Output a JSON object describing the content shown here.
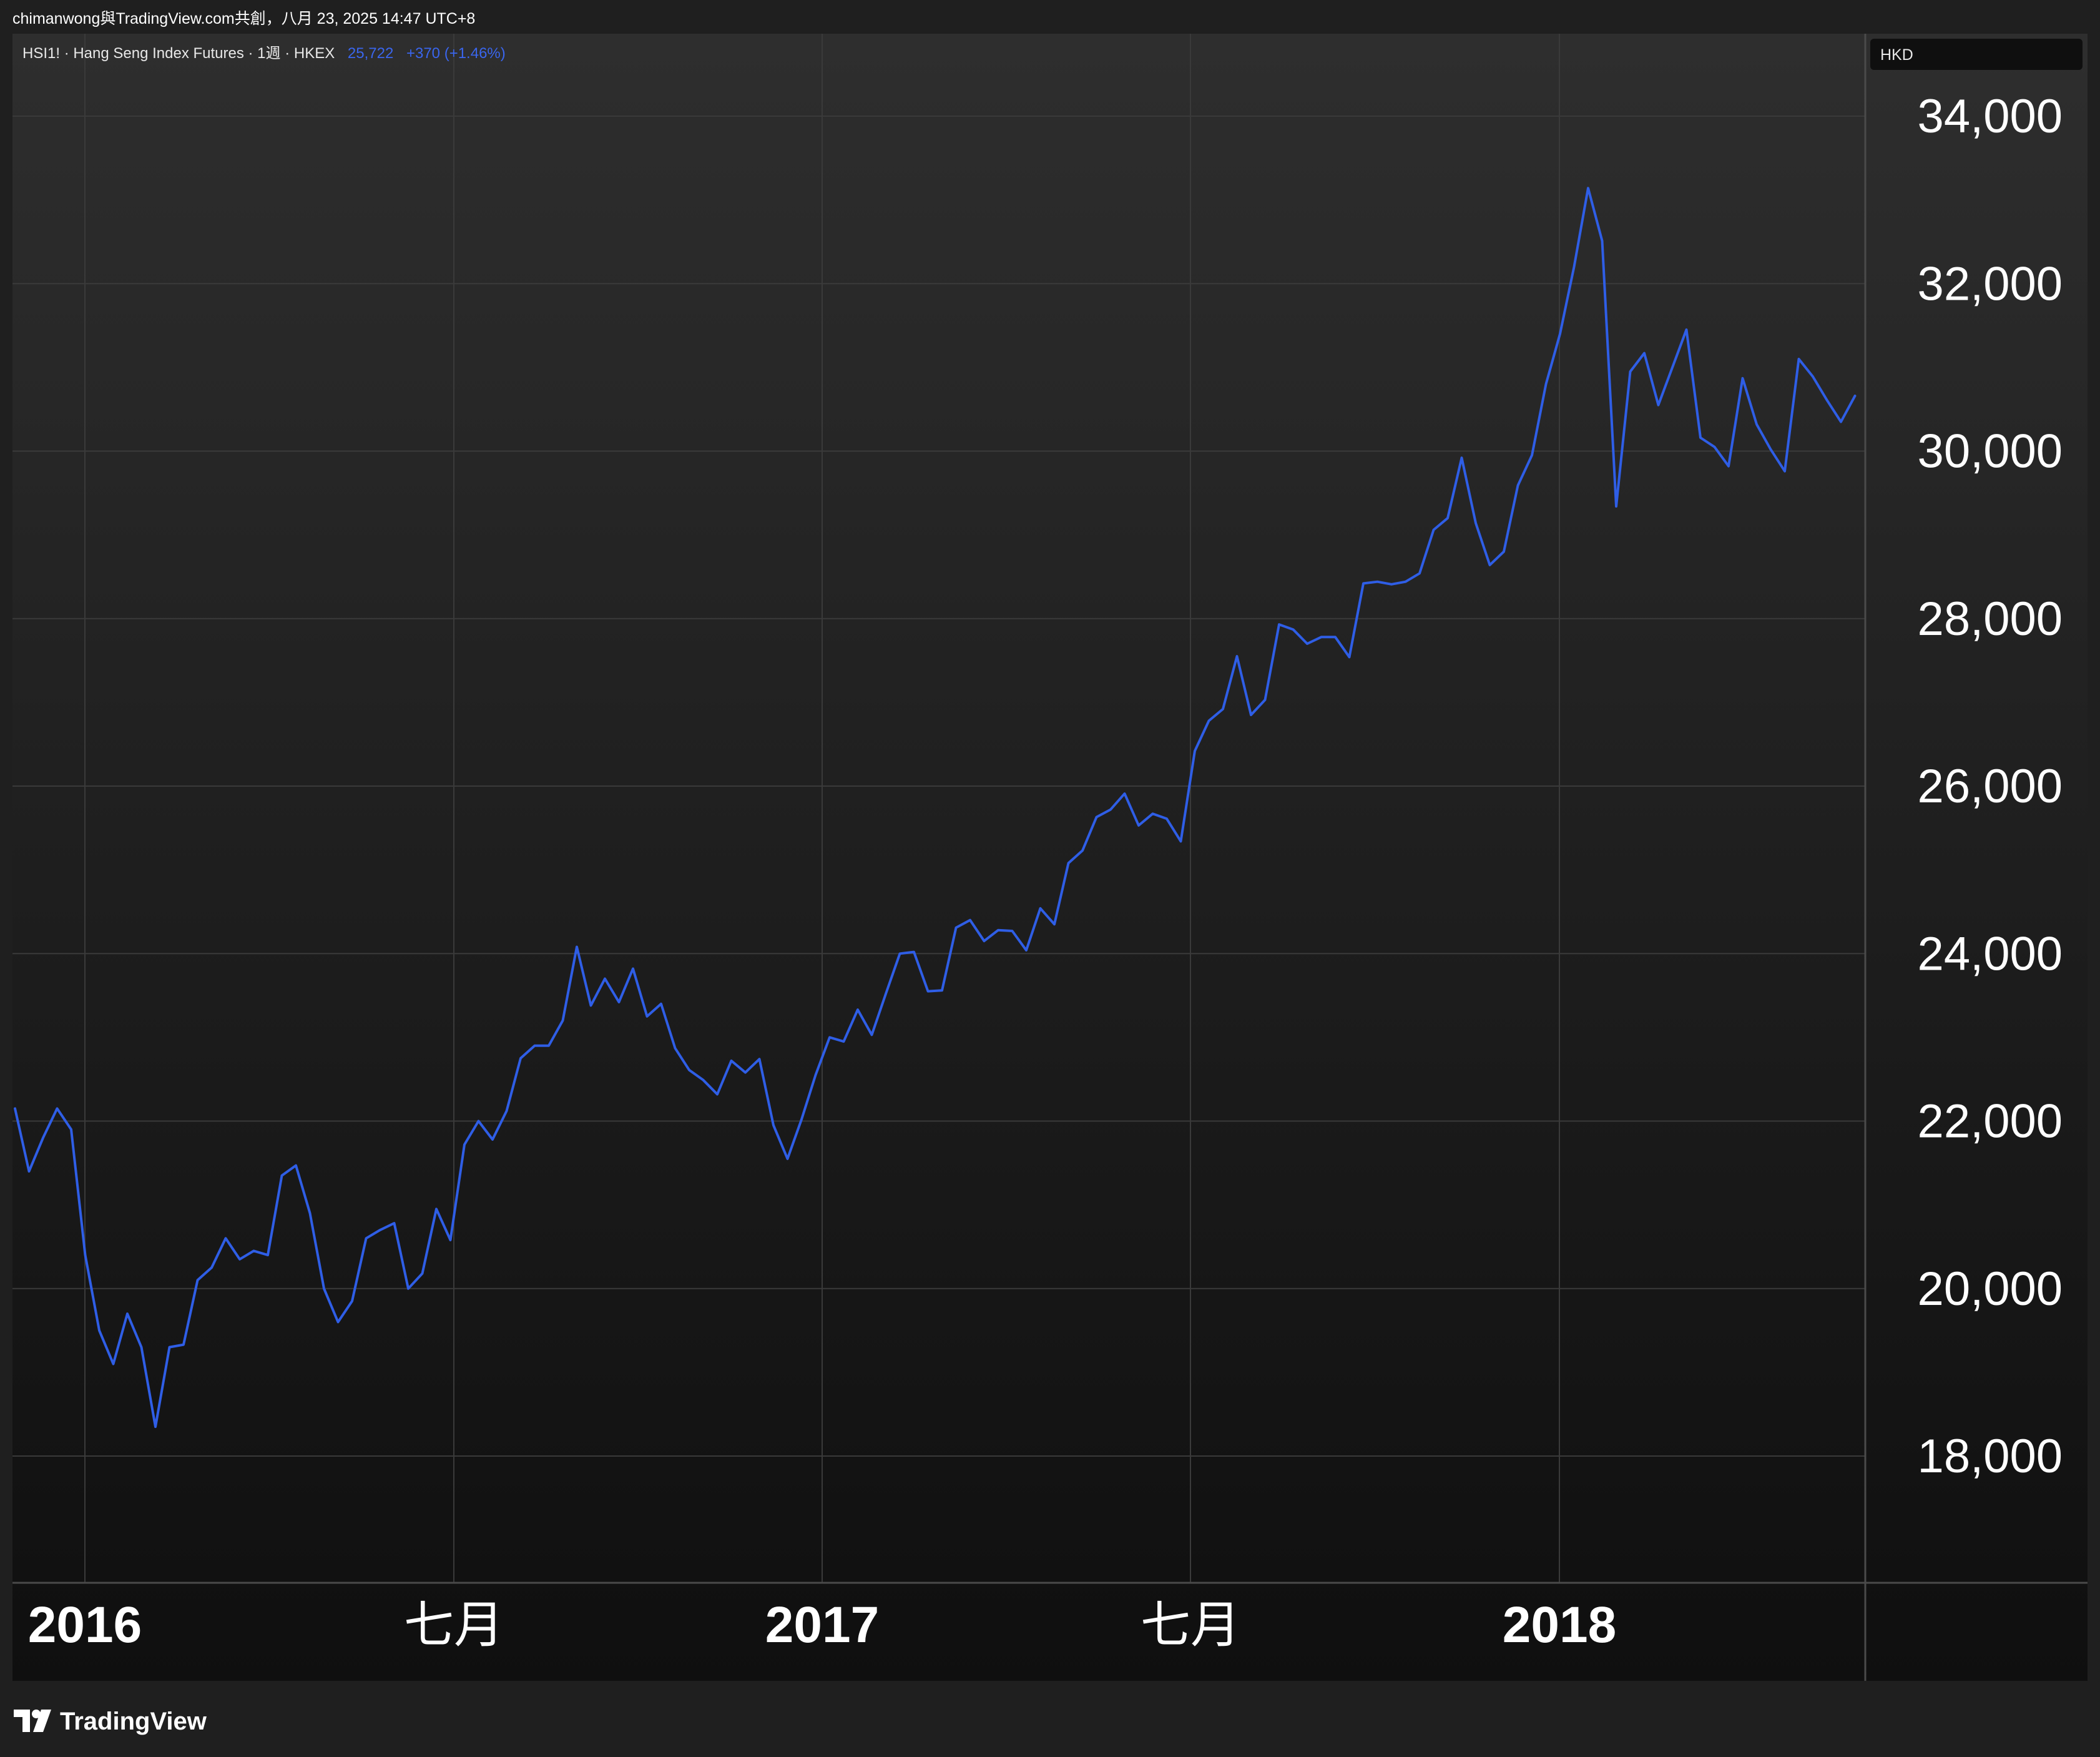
{
  "attribution": "chimanwong與TradingView.com共創，八月 23, 2025 14:47 UTC+8",
  "header": {
    "symbol_line": "HSI1! · Hang Seng Index Futures · 1週 · HKEX",
    "last_price": "25,722",
    "change": "+370 (+1.46%)"
  },
  "currency": "HKD",
  "brand": {
    "name": "TradingView"
  },
  "colors": {
    "line": "#2f5ee6",
    "price_text": "#3a66ee",
    "background": "#1f1f1f",
    "grid": "#3a3a3a"
  },
  "chart_data": {
    "type": "line",
    "title": "",
    "series": [
      {
        "name": "",
        "values": [
          22150,
          21400,
          21800,
          22150,
          21900,
          20400,
          19500,
          19100,
          19700,
          19300,
          18350,
          19300,
          19330,
          20100,
          20250,
          20600,
          20350,
          20450,
          20400,
          21350,
          21470,
          20900,
          20000,
          19600,
          19850,
          20600,
          20700,
          20780,
          20000,
          20180,
          20950,
          20580,
          21720,
          22000,
          21780,
          22120,
          22750,
          22900,
          22900,
          23200,
          24080,
          23380,
          23700,
          23420,
          23820,
          23250,
          23400,
          22870,
          22610,
          22490,
          22320,
          22720,
          22580,
          22740,
          21950,
          21550,
          22020,
          22550,
          23000,
          22950,
          23330,
          23030,
          23520,
          24000,
          24020,
          23550,
          23560,
          24310,
          24400,
          24150,
          24280,
          24270,
          24040,
          24540,
          24350,
          25080,
          25230,
          25630,
          25720,
          25910,
          25530,
          25670,
          25610,
          25340,
          26420,
          26780,
          26920,
          27550,
          26850,
          27030,
          27930,
          27870,
          27700,
          27780,
          27780,
          27540,
          28420,
          28440,
          28410,
          28440,
          28540,
          29060,
          29200,
          29920,
          29140,
          28640,
          28800,
          29590,
          29950,
          30800,
          31400,
          32200,
          33140,
          32510,
          29340,
          30950,
          31170,
          30550,
          31000,
          31450,
          30160,
          30050,
          29820,
          30870,
          30320,
          30020,
          29760,
          31100,
          30890,
          30610,
          30350,
          30660
        ]
      }
    ],
    "x_ticks": [
      "2016",
      "七月",
      "2017",
      "七月",
      "2018"
    ],
    "y_ticks": [
      "18,000",
      "20,000",
      "22,000",
      "24,000",
      "26,000",
      "28,000",
      "30,000",
      "32,000",
      "34,000"
    ],
    "ylim": [
      16500,
      34900
    ],
    "grid": true,
    "ylabel": "",
    "xlabel": ""
  }
}
